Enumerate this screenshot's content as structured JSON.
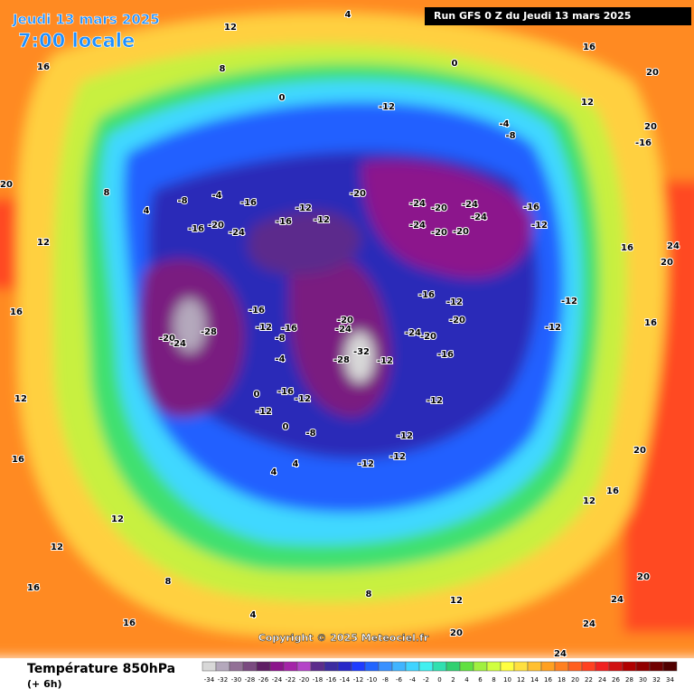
{
  "header": {
    "date": "Jeudi 13 mars 2025",
    "time": "7:00 locale",
    "run": "Run GFS 0 Z du Jeudi 13 mars 2025"
  },
  "map": {
    "labels": [
      16,
      12,
      4,
      8,
      0,
      -12,
      0,
      16,
      20,
      12,
      20,
      -16,
      -4,
      -8,
      -20,
      -24,
      -20,
      -24,
      -24,
      -16,
      -12,
      -20,
      -20,
      -24,
      -16,
      -12,
      -16,
      -20,
      -24,
      -16,
      -8,
      -4,
      -12,
      -16,
      -16,
      -12,
      -20,
      -20,
      -24,
      -32,
      -28,
      -12,
      -24,
      -20,
      -16,
      -28,
      -20,
      -24,
      -12,
      -16,
      -8,
      -4,
      -16,
      -12,
      0,
      -12,
      0,
      -8,
      -12,
      -12,
      -12,
      -12,
      4,
      4,
      -12,
      -12,
      16,
      20,
      24,
      16,
      20,
      16,
      12,
      20,
      24,
      24,
      24,
      20,
      4,
      8,
      12,
      8,
      12,
      12,
      16,
      16,
      12,
      16,
      20,
      16,
      12,
      8,
      4
    ]
  },
  "copyright": "Copyright © 2025 Meteociel.fr",
  "legend": {
    "title": "Température 850hPa",
    "step": "(+ 6h)",
    "scale": [
      {
        "value": -34,
        "color": "#d8d8d8"
      },
      {
        "value": -32,
        "color": "#b4a8bc"
      },
      {
        "value": -30,
        "color": "#927096"
      },
      {
        "value": -28,
        "color": "#7a4a80"
      },
      {
        "value": -26,
        "color": "#5e1e64"
      },
      {
        "value": -24,
        "color": "#8c148c"
      },
      {
        "value": -22,
        "color": "#a424a8"
      },
      {
        "value": -20,
        "color": "#b444c8"
      },
      {
        "value": -18,
        "color": "#5c2c8c"
      },
      {
        "value": -16,
        "color": "#3c2ca0"
      },
      {
        "value": -14,
        "color": "#2828c8"
      },
      {
        "value": -12,
        "color": "#1e3cff"
      },
      {
        "value": -10,
        "color": "#2064ff"
      },
      {
        "value": -8,
        "color": "#3890ff"
      },
      {
        "value": -6,
        "color": "#40b4ff"
      },
      {
        "value": -4,
        "color": "#40d4ff"
      },
      {
        "value": -2,
        "color": "#40f0f0"
      },
      {
        "value": 0,
        "color": "#30e0b0"
      },
      {
        "value": 2,
        "color": "#30d070"
      },
      {
        "value": 4,
        "color": "#60e040"
      },
      {
        "value": 6,
        "color": "#a0f040"
      },
      {
        "value": 8,
        "color": "#d0ff40"
      },
      {
        "value": 10,
        "color": "#ffff40"
      },
      {
        "value": 12,
        "color": "#ffe040"
      },
      {
        "value": 14,
        "color": "#ffc030"
      },
      {
        "value": 16,
        "color": "#ffa020"
      },
      {
        "value": 18,
        "color": "#ff8020"
      },
      {
        "value": 20,
        "color": "#ff6020"
      },
      {
        "value": 22,
        "color": "#ff4020"
      },
      {
        "value": 24,
        "color": "#f02020"
      },
      {
        "value": 26,
        "color": "#d01010"
      },
      {
        "value": 28,
        "color": "#b00000"
      },
      {
        "value": 30,
        "color": "#900000"
      },
      {
        "value": 32,
        "color": "#700000"
      },
      {
        "value": 34,
        "color": "#500000"
      }
    ]
  }
}
